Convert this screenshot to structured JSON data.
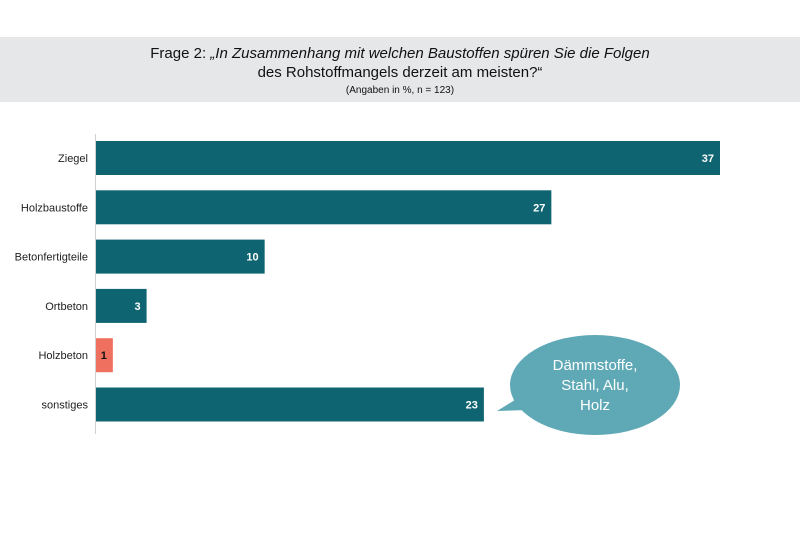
{
  "header": {
    "title_prefix": "Frage 2: ",
    "title_question_line1": "„In Zusammenhang mit welchen Baustoffen spüren Sie die Folgen",
    "title_question_line2": "des Rohstoffmangels derzeit am meisten?“",
    "subtitle": "(Angaben in %, n = 123)"
  },
  "chart_data": {
    "type": "bar",
    "orientation": "horizontal",
    "categories": [
      "Ziegel",
      "Holzbaustoffe",
      "Betonfertigteile",
      "Ortbeton",
      "Holzbeton",
      "sonstiges"
    ],
    "values": [
      37,
      27,
      10,
      3,
      1,
      23
    ],
    "bar_colors": [
      "#0e6470",
      "#0e6470",
      "#0e6470",
      "#0e6470",
      "#f07060",
      "#0e6470"
    ],
    "value_label_colors": [
      "#ffffff",
      "#ffffff",
      "#ffffff",
      "#ffffff",
      "#111111",
      "#ffffff"
    ],
    "xlim": [
      0,
      37
    ],
    "grid": false,
    "annotation": {
      "lines": [
        "Dämmstoffe,",
        "Stahl, Alu,",
        "Holz"
      ],
      "color": "#5fa9b6",
      "points_to": "sonstiges"
    }
  }
}
